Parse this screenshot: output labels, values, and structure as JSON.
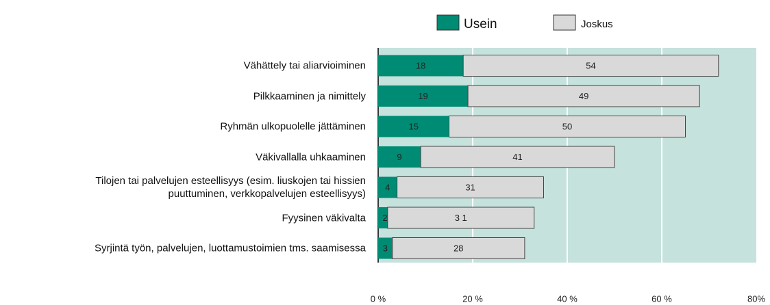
{
  "chart_data": {
    "type": "stacked_barh",
    "categories": [
      "Vähättely tai aliarvioiminen",
      "Pilkkaaminen ja nimittely",
      "Ryhmän ulkopuolelle jättäminen",
      "Väkivallalla uhkaaminen",
      "Tilojen tai palvelujen esteellisyys (esim. liuskojen tai hissien\npuuttuminen, verkkopalvelujen esteellisyys)",
      "Fyysinen väkivalta",
      "Syrjintä työn, palvelujen, luottamustoimien tms. saamisessa"
    ],
    "series": [
      {
        "name": "Usein",
        "color": "#008b74",
        "values": [
          18,
          19,
          15,
          9,
          4,
          2,
          3
        ]
      },
      {
        "name": "Joskus",
        "color": "#d9d9d9",
        "values": [
          54,
          49,
          50,
          41,
          31,
          31,
          28
        ],
        "value_labels": [
          "54",
          "49",
          "50",
          "41",
          "31",
          "3 1",
          "28"
        ]
      }
    ],
    "xlim": [
      0,
      80
    ],
    "xticks": [
      {
        "value": 0,
        "label": "0 %"
      },
      {
        "value": 20,
        "label": "20 %"
      },
      {
        "value": 40,
        "label": "40 %"
      },
      {
        "value": 60,
        "label": "60 %"
      },
      {
        "value": 80,
        "label": "80%"
      }
    ],
    "grid": true,
    "legend": "top",
    "plot_background": "#c6e2dd"
  }
}
